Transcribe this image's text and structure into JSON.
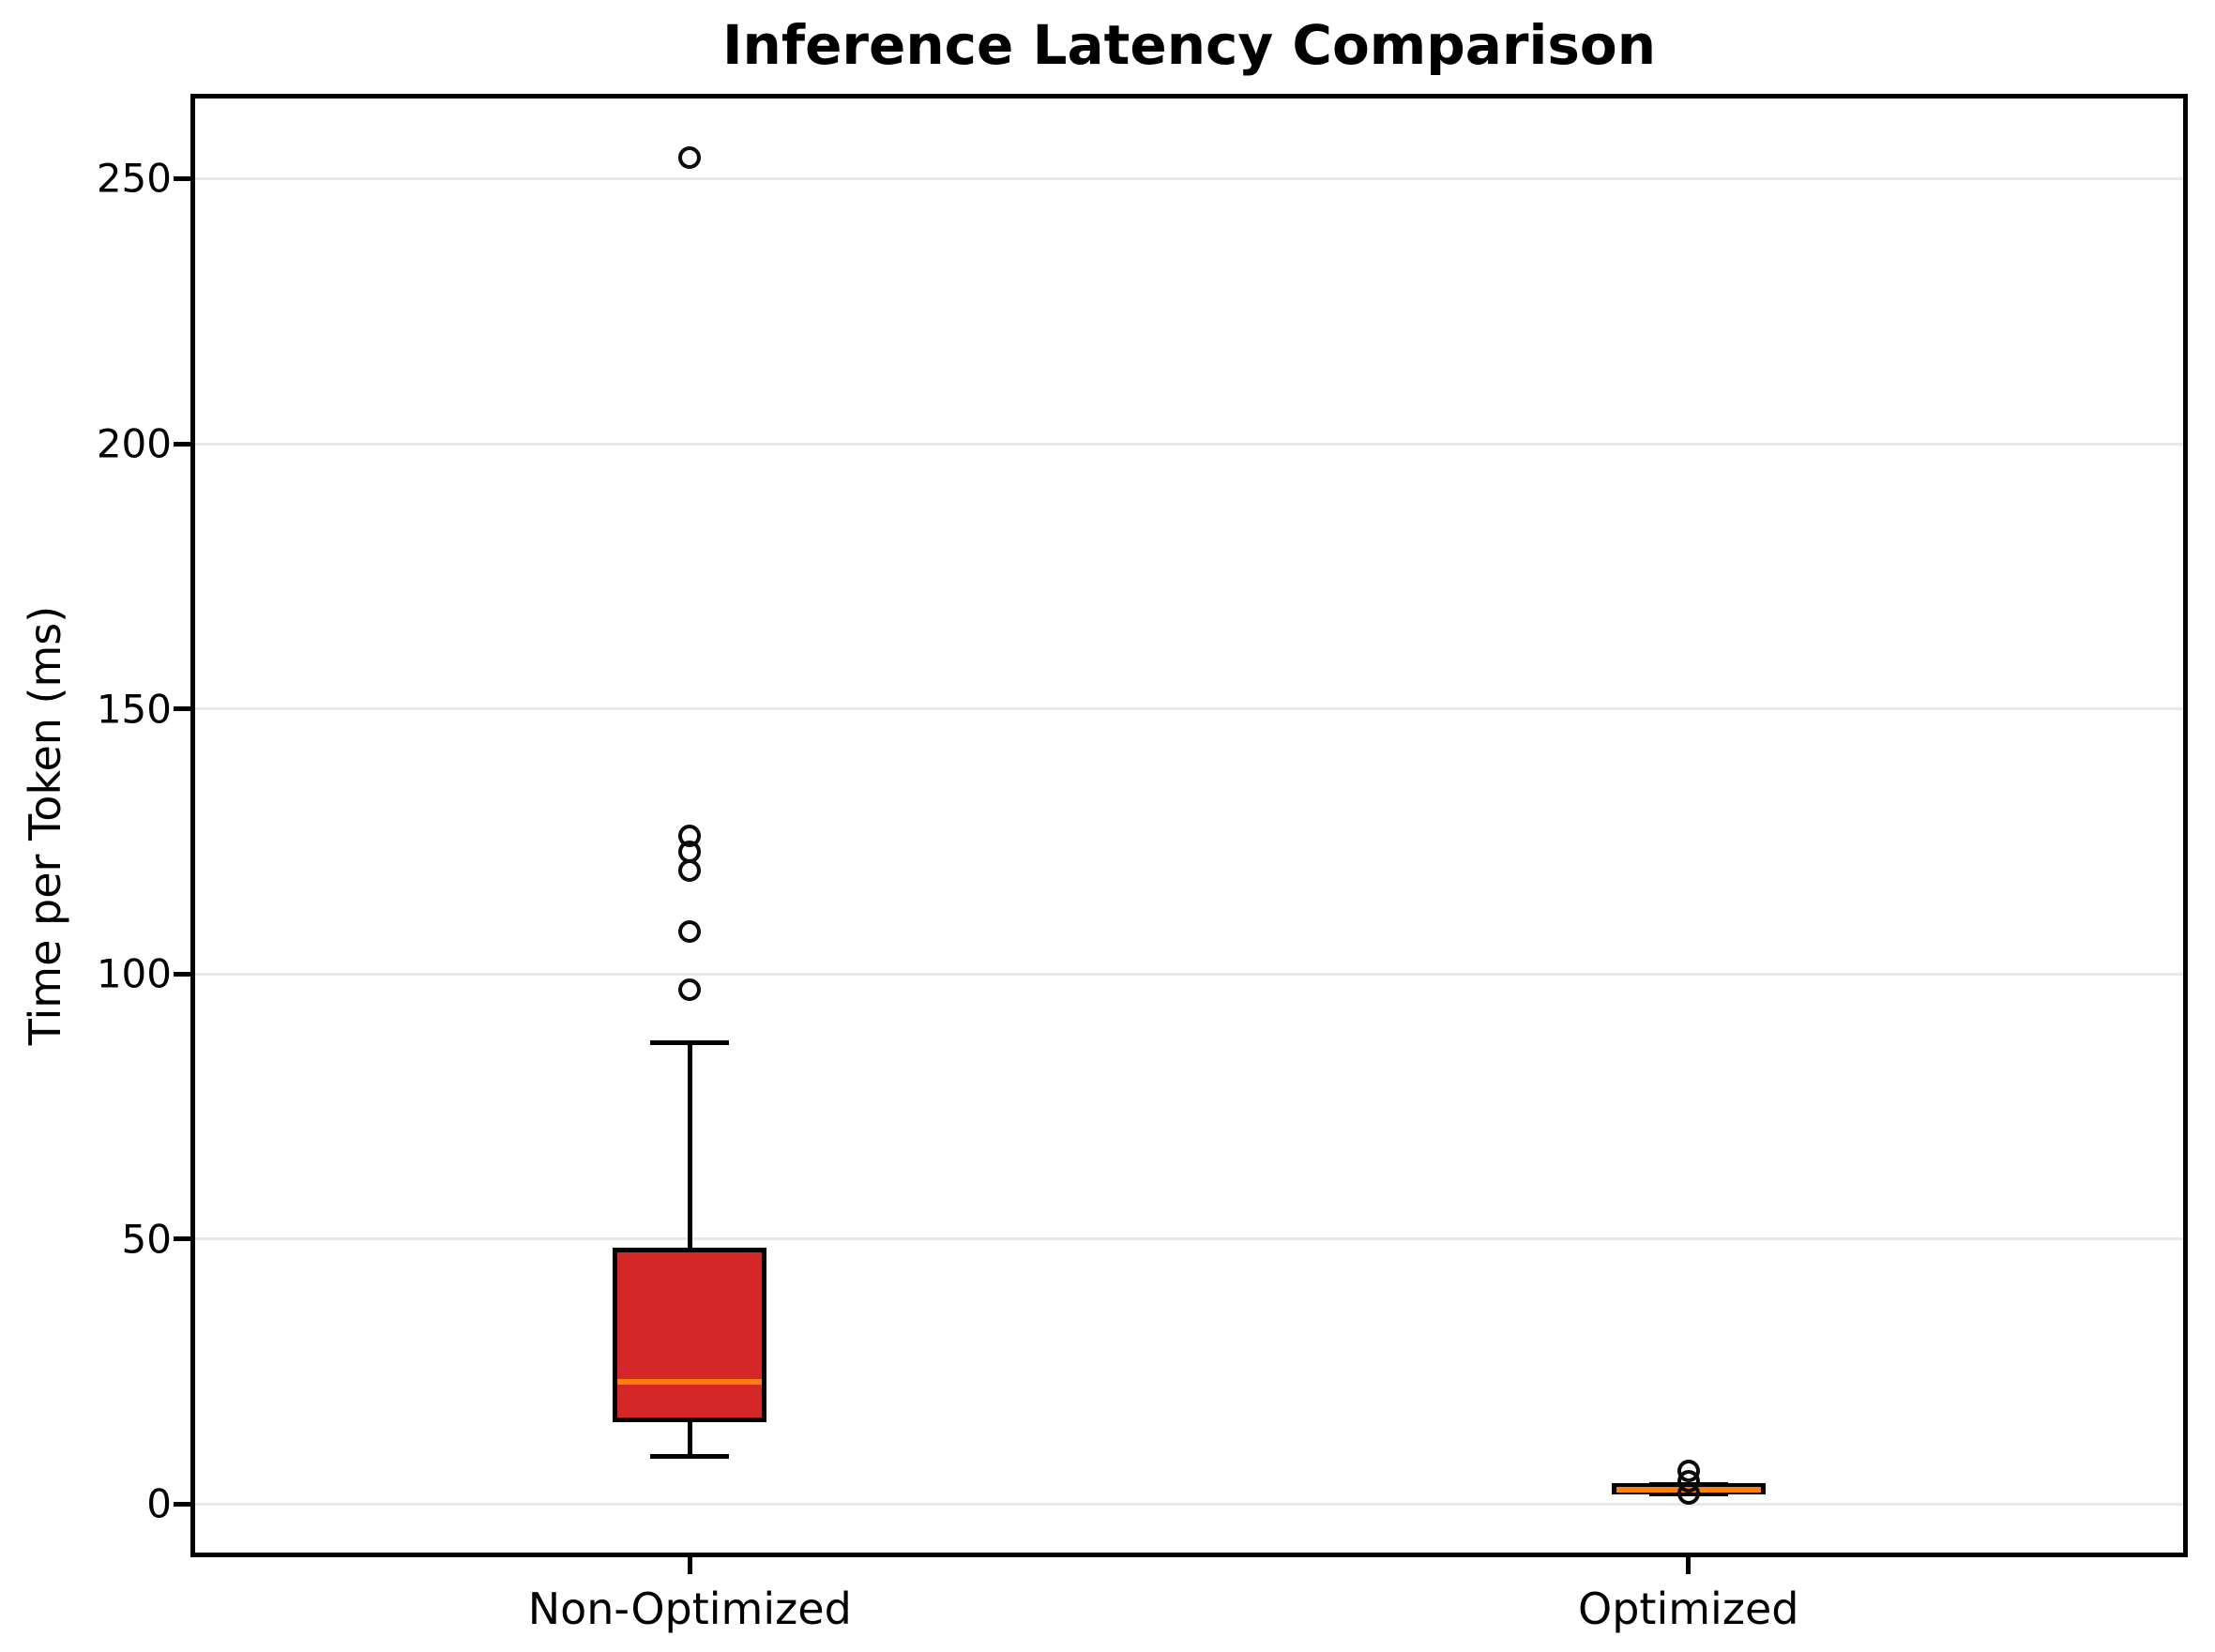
{
  "chart_data": {
    "type": "boxplot",
    "title": "Inference Latency Comparison",
    "ylabel": "Time per Token (ms)",
    "xlabel": "",
    "ylim": [
      -10,
      266
    ],
    "yticks": [
      0,
      50,
      100,
      150,
      200,
      250
    ],
    "grid": "horizontal-light",
    "legend": "none",
    "categories": [
      "Non-Optimized",
      "Optimized"
    ],
    "series": [
      {
        "name": "Non-Optimized",
        "q1": 16,
        "median": 23,
        "q3": 48,
        "whisker_low": 9,
        "whisker_high": 87,
        "outliers": [
          254,
          126,
          123,
          119.5,
          108,
          97
        ],
        "box_fill": "#d62728"
      },
      {
        "name": "Optimized",
        "q1": 2.3,
        "median": 2.8,
        "q3": 3.5,
        "whisker_low": 2.0,
        "whisker_high": 3.8,
        "outliers": [
          6.2,
          4.3,
          2.0
        ],
        "box_fill": "#ff7f0e"
      }
    ],
    "median_color": "#ff7f0e",
    "line_color": "#000000",
    "grid_color": "#e8e8e8"
  }
}
